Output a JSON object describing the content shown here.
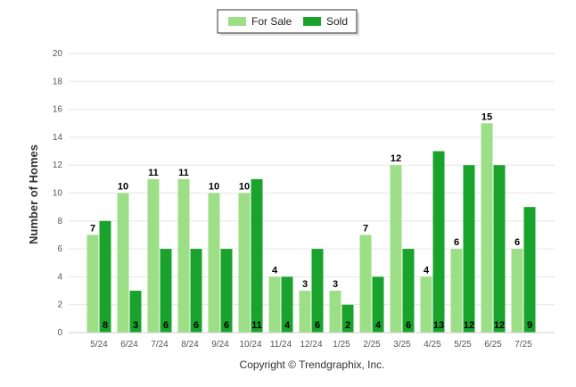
{
  "chart_data": {
    "type": "bar",
    "categories": [
      "5/24",
      "6/24",
      "7/24",
      "8/24",
      "9/24",
      "10/24",
      "11/24",
      "12/24",
      "1/25",
      "2/25",
      "3/25",
      "4/25",
      "5/25",
      "6/25",
      "7/25"
    ],
    "series": [
      {
        "name": "For Sale",
        "color": "#9ddf86",
        "values": [
          7,
          10,
          11,
          11,
          10,
          10,
          4,
          3,
          3,
          7,
          12,
          4,
          6,
          15,
          6
        ]
      },
      {
        "name": "Sold",
        "color": "#1aa32c",
        "values": [
          8,
          3,
          6,
          6,
          6,
          11,
          4,
          6,
          2,
          4,
          6,
          13,
          12,
          12,
          9
        ]
      }
    ],
    "yticks": [
      "0",
      "2",
      "4",
      "6",
      "8",
      "10",
      "12",
      "14",
      "16",
      "18",
      "20"
    ],
    "ylim": [
      0,
      20
    ],
    "ylabel": "Number of Homes",
    "xlabel": "",
    "grid": true,
    "legend_position": "top-center"
  },
  "footer": {
    "copyright": "Copyright © Trendgraphix, Inc."
  }
}
